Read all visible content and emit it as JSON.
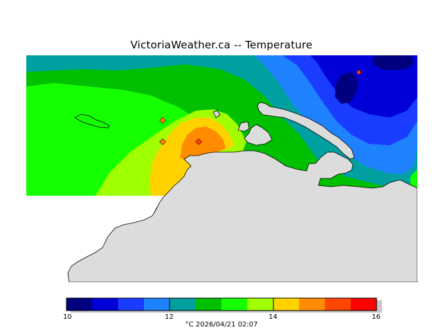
{
  "title": "VictoriaWeather.ca -- Temperature",
  "footer": "°C  2026/04/21 02:07",
  "legend": {
    "ticks": [
      "10",
      "12",
      "14",
      "16"
    ],
    "colors": [
      "#000080",
      "#0000d8",
      "#1a3cff",
      "#1e82ff",
      "#00a0a0",
      "#00c000",
      "#14ff00",
      "#a0ff00",
      "#ffd200",
      "#ff8c00",
      "#ff4600",
      "#ff0000"
    ]
  },
  "map": {
    "land_color": "#dcdcdc",
    "station_markers": 4
  }
}
